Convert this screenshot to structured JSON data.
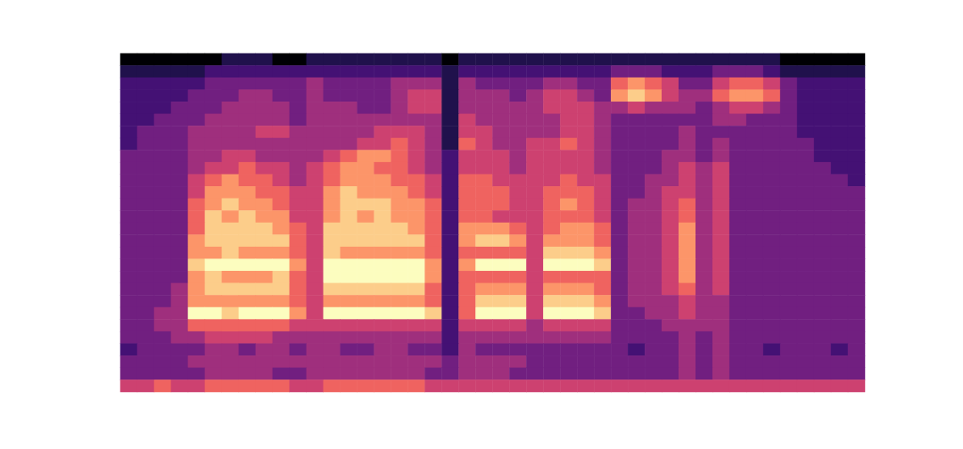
{
  "chart_data": {
    "type": "heatmap",
    "tick_labels": false,
    "zlim": [
      0,
      9
    ],
    "cells": [
      [
        0,
        0,
        0,
        0,
        0,
        0,
        1,
        1,
        1,
        0,
        0,
        1,
        1,
        1,
        1,
        1,
        1,
        1,
        1,
        0,
        1,
        1,
        1,
        1,
        1,
        1,
        1,
        1,
        1,
        1,
        1,
        1,
        1,
        1,
        1,
        1,
        1,
        1,
        1,
        0,
        0,
        0,
        0,
        0
      ],
      [
        1,
        1,
        1,
        1,
        1,
        2,
        2,
        2,
        2,
        2,
        2,
        2,
        2,
        2,
        2,
        2,
        2,
        2,
        2,
        1,
        2,
        2,
        2,
        2,
        2,
        2,
        2,
        2,
        2,
        3,
        3,
        3,
        2,
        2,
        2,
        3,
        3,
        3,
        2,
        1,
        1,
        1,
        1,
        1
      ],
      [
        2,
        2,
        2,
        2,
        2,
        3,
        3,
        3,
        3,
        3,
        3,
        4,
        3,
        3,
        3,
        3,
        4,
        4,
        4,
        1,
        4,
        3,
        3,
        3,
        3,
        4,
        4,
        3,
        3,
        6,
        7,
        6,
        5,
        3,
        3,
        5,
        6,
        6,
        5,
        3,
        2,
        2,
        2,
        2
      ],
      [
        2,
        2,
        2,
        2,
        3,
        3,
        3,
        4,
        4,
        3,
        3,
        4,
        3,
        3,
        3,
        3,
        4,
        5,
        5,
        1,
        4,
        4,
        4,
        3,
        4,
        5,
        5,
        4,
        3,
        7,
        8,
        7,
        5,
        4,
        4,
        6,
        7,
        7,
        6,
        3,
        2,
        2,
        2,
        2
      ],
      [
        2,
        2,
        2,
        3,
        3,
        3,
        4,
        4,
        4,
        4,
        3,
        4,
        4,
        4,
        3,
        3,
        4,
        5,
        5,
        1,
        4,
        4,
        4,
        4,
        4,
        5,
        5,
        5,
        4,
        4,
        5,
        4,
        4,
        4,
        3,
        4,
        5,
        5,
        4,
        3,
        2,
        2,
        2,
        2
      ],
      [
        2,
        2,
        3,
        3,
        3,
        4,
        4,
        4,
        4,
        4,
        3,
        4,
        4,
        4,
        4,
        4,
        4,
        4,
        4,
        1,
        5,
        4,
        4,
        4,
        4,
        4,
        5,
        5,
        4,
        3,
        3,
        3,
        3,
        3,
        3,
        4,
        4,
        3,
        3,
        3,
        2,
        2,
        2,
        2
      ],
      [
        2,
        3,
        3,
        3,
        4,
        4,
        4,
        4,
        5,
        5,
        4,
        4,
        4,
        4,
        4,
        5,
        5,
        5,
        4,
        1,
        5,
        5,
        4,
        4,
        4,
        4,
        5,
        5,
        4,
        3,
        3,
        3,
        3,
        4,
        3,
        3,
        3,
        3,
        3,
        3,
        2,
        2,
        2,
        2
      ],
      [
        2,
        3,
        3,
        3,
        4,
        4,
        4,
        4,
        4,
        4,
        4,
        4,
        4,
        4,
        5,
        5,
        6,
        5,
        4,
        1,
        6,
        5,
        4,
        4,
        5,
        5,
        6,
        5,
        4,
        3,
        3,
        3,
        3,
        4,
        3,
        4,
        3,
        3,
        3,
        3,
        3,
        2,
        2,
        2
      ],
      [
        3,
        3,
        3,
        3,
        4,
        4,
        5,
        5,
        4,
        4,
        4,
        4,
        5,
        6,
        7,
        7,
        6,
        5,
        4,
        2,
        5,
        5,
        5,
        4,
        5,
        5,
        5,
        5,
        4,
        3,
        3,
        3,
        4,
        4,
        3,
        4,
        3,
        3,
        3,
        3,
        3,
        2,
        2,
        2
      ],
      [
        3,
        3,
        3,
        3,
        4,
        5,
        5,
        6,
        5,
        5,
        4,
        5,
        6,
        7,
        7,
        6,
        6,
        5,
        4,
        2,
        5,
        5,
        5,
        4,
        5,
        5,
        5,
        5,
        4,
        3,
        3,
        3,
        4,
        5,
        4,
        5,
        3,
        3,
        3,
        3,
        3,
        3,
        2,
        2
      ],
      [
        3,
        3,
        3,
        3,
        5,
        6,
        7,
        6,
        6,
        5,
        4,
        5,
        6,
        7,
        7,
        7,
        6,
        6,
        5,
        2,
        6,
        6,
        5,
        5,
        5,
        5,
        6,
        5,
        5,
        3,
        3,
        4,
        4,
        5,
        4,
        5,
        3,
        3,
        3,
        3,
        3,
        3,
        3,
        2
      ],
      [
        3,
        3,
        3,
        3,
        5,
        7,
        7,
        7,
        6,
        6,
        5,
        5,
        7,
        8,
        7,
        7,
        7,
        6,
        5,
        2,
        6,
        6,
        6,
        5,
        5,
        6,
        6,
        6,
        5,
        3,
        3,
        4,
        5,
        5,
        4,
        5,
        3,
        3,
        3,
        3,
        3,
        3,
        3,
        3
      ],
      [
        3,
        3,
        3,
        3,
        6,
        7,
        8,
        7,
        7,
        6,
        5,
        5,
        7,
        8,
        8,
        8,
        7,
        7,
        6,
        2,
        6,
        6,
        6,
        5,
        5,
        6,
        7,
        6,
        5,
        3,
        4,
        4,
        5,
        6,
        4,
        5,
        3,
        3,
        3,
        3,
        3,
        3,
        3,
        3
      ],
      [
        3,
        3,
        3,
        3,
        6,
        8,
        7,
        8,
        7,
        7,
        5,
        5,
        7,
        8,
        7,
        8,
        7,
        7,
        6,
        2,
        6,
        6,
        5,
        5,
        5,
        6,
        6,
        6,
        5,
        3,
        4,
        4,
        5,
        6,
        4,
        5,
        3,
        3,
        3,
        3,
        3,
        3,
        3,
        3
      ],
      [
        3,
        3,
        3,
        3,
        6,
        8,
        8,
        8,
        8,
        7,
        6,
        5,
        8,
        8,
        8,
        8,
        8,
        7,
        6,
        2,
        7,
        7,
        7,
        6,
        5,
        6,
        7,
        7,
        6,
        3,
        4,
        4,
        5,
        7,
        4,
        5,
        3,
        3,
        3,
        3,
        3,
        3,
        3,
        3
      ],
      [
        3,
        3,
        3,
        3,
        7,
        8,
        8,
        8,
        8,
        8,
        6,
        5,
        8,
        8,
        8,
        8,
        8,
        8,
        6,
        2,
        7,
        8,
        8,
        7,
        5,
        7,
        7,
        7,
        6,
        3,
        4,
        4,
        5,
        7,
        4,
        5,
        3,
        3,
        3,
        3,
        3,
        3,
        3,
        3
      ],
      [
        3,
        3,
        3,
        3,
        7,
        7,
        8,
        7,
        7,
        7,
        6,
        5,
        8,
        7,
        7,
        7,
        7,
        7,
        6,
        2,
        6,
        6,
        6,
        6,
        5,
        8,
        8,
        8,
        7,
        3,
        4,
        4,
        5,
        7,
        4,
        5,
        3,
        3,
        3,
        3,
        3,
        3,
        3,
        3
      ],
      [
        3,
        3,
        3,
        3,
        8,
        9,
        9,
        9,
        9,
        9,
        7,
        5,
        9,
        9,
        9,
        9,
        9,
        9,
        7,
        2,
        7,
        9,
        9,
        9,
        5,
        9,
        9,
        9,
        8,
        3,
        4,
        4,
        5,
        7,
        4,
        5,
        3,
        3,
        3,
        3,
        3,
        3,
        3,
        3
      ],
      [
        3,
        3,
        3,
        3,
        7,
        8,
        7,
        7,
        7,
        8,
        6,
        5,
        9,
        9,
        9,
        9,
        9,
        9,
        7,
        2,
        6,
        6,
        6,
        6,
        5,
        6,
        6,
        6,
        6,
        3,
        4,
        4,
        5,
        7,
        4,
        5,
        3,
        3,
        3,
        3,
        3,
        3,
        3,
        3
      ],
      [
        3,
        3,
        3,
        4,
        7,
        8,
        8,
        8,
        8,
        8,
        6,
        5,
        8,
        8,
        8,
        8,
        8,
        8,
        6,
        2,
        6,
        7,
        7,
        7,
        5,
        7,
        7,
        7,
        6,
        3,
        4,
        4,
        5,
        6,
        4,
        5,
        3,
        3,
        3,
        3,
        3,
        3,
        3,
        3
      ],
      [
        3,
        3,
        3,
        4,
        7,
        7,
        7,
        7,
        7,
        7,
        6,
        5,
        7,
        7,
        7,
        7,
        7,
        7,
        6,
        2,
        6,
        8,
        8,
        8,
        5,
        8,
        8,
        8,
        7,
        3,
        4,
        4,
        4,
        5,
        4,
        4,
        3,
        3,
        3,
        3,
        3,
        3,
        3,
        3
      ],
      [
        3,
        3,
        4,
        4,
        9,
        9,
        8,
        9,
        9,
        9,
        7,
        5,
        9,
        9,
        9,
        9,
        9,
        9,
        8,
        2,
        6,
        9,
        9,
        9,
        5,
        9,
        9,
        9,
        8,
        3,
        3,
        4,
        4,
        5,
        4,
        4,
        3,
        3,
        3,
        3,
        3,
        3,
        3,
        3
      ],
      [
        3,
        3,
        4,
        4,
        6,
        6,
        6,
        6,
        6,
        6,
        5,
        5,
        5,
        5,
        5,
        5,
        5,
        5,
        5,
        2,
        5,
        5,
        5,
        5,
        4,
        5,
        5,
        5,
        5,
        3,
        3,
        3,
        4,
        4,
        4,
        4,
        3,
        3,
        3,
        3,
        3,
        3,
        3,
        3
      ],
      [
        3,
        3,
        3,
        4,
        4,
        5,
        5,
        5,
        5,
        4,
        4,
        4,
        4,
        4,
        4,
        4,
        4,
        4,
        4,
        2,
        4,
        4,
        4,
        4,
        4,
        4,
        4,
        4,
        4,
        3,
        3,
        3,
        3,
        4,
        3,
        4,
        3,
        3,
        3,
        3,
        3,
        3,
        3,
        3
      ],
      [
        2,
        3,
        3,
        3,
        3,
        4,
        4,
        3,
        4,
        4,
        3,
        4,
        4,
        3,
        3,
        4,
        4,
        3,
        3,
        2,
        4,
        3,
        3,
        3,
        3,
        3,
        3,
        3,
        3,
        3,
        2,
        3,
        3,
        4,
        3,
        4,
        3,
        3,
        2,
        3,
        3,
        3,
        2,
        3
      ],
      [
        3,
        3,
        3,
        3,
        4,
        4,
        4,
        4,
        4,
        4,
        4,
        4,
        4,
        4,
        4,
        4,
        4,
        4,
        4,
        3,
        4,
        4,
        4,
        4,
        3,
        3,
        3,
        3,
        3,
        3,
        3,
        3,
        3,
        4,
        3,
        4,
        3,
        3,
        3,
        3,
        3,
        3,
        3,
        3
      ],
      [
        3,
        3,
        3,
        3,
        3,
        4,
        4,
        4,
        4,
        3,
        3,
        4,
        4,
        4,
        4,
        4,
        4,
        4,
        3,
        3,
        4,
        4,
        4,
        3,
        3,
        3,
        3,
        3,
        3,
        3,
        3,
        3,
        3,
        4,
        3,
        4,
        3,
        3,
        3,
        3,
        3,
        3,
        3,
        3
      ],
      [
        5,
        5,
        6,
        5,
        5,
        6,
        6,
        6,
        6,
        6,
        5,
        5,
        6,
        6,
        6,
        6,
        6,
        6,
        5,
        5,
        5,
        5,
        5,
        5,
        5,
        5,
        5,
        5,
        5,
        5,
        5,
        5,
        5,
        5,
        5,
        5,
        5,
        5,
        5,
        5,
        5,
        5,
        5,
        5
      ]
    ]
  }
}
